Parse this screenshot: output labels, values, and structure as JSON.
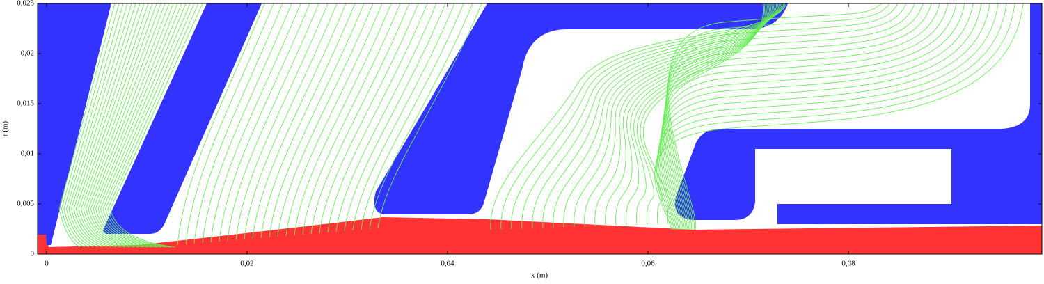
{
  "chart_data": {
    "type": "field-plot",
    "xlabel": "x (m)",
    "ylabel": "r (m)",
    "xlim": [
      -0.0009,
      0.0993
    ],
    "ylim": [
      0,
      0.025
    ],
    "xticks": [
      0,
      {
        "value": 0.02,
        "label": "0,02"
      },
      {
        "value": 0.04,
        "label": "0,04"
      },
      {
        "value": 0.06,
        "label": "0,06"
      },
      {
        "value": 0.08,
        "label": "0,08"
      }
    ],
    "yticks": [
      0,
      {
        "value": 0.005,
        "label": "0,005"
      },
      {
        "value": 0.01,
        "label": "0,01"
      },
      {
        "value": 0.015,
        "label": "0,015"
      },
      {
        "value": 0.02,
        "label": "0,02"
      },
      {
        "value": 0.025,
        "label": "0,025"
      }
    ]
  }
}
